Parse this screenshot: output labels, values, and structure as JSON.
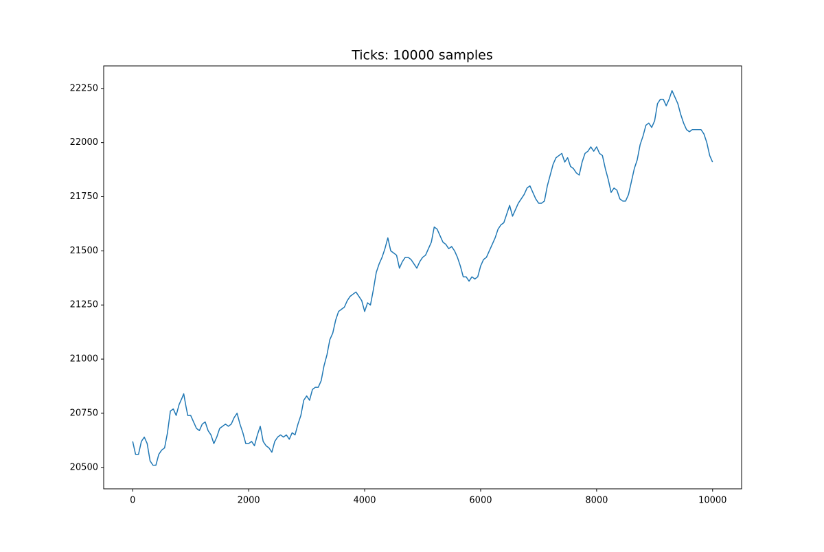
{
  "chart_data": {
    "type": "line",
    "title": "Ticks: 10000 samples",
    "x": [
      0,
      50,
      100,
      150,
      200,
      250,
      300,
      350,
      400,
      450,
      500,
      550,
      600,
      650,
      700,
      750,
      800,
      850,
      880,
      920,
      950,
      1000,
      1050,
      1100,
      1150,
      1200,
      1250,
      1300,
      1350,
      1400,
      1450,
      1500,
      1550,
      1600,
      1650,
      1700,
      1750,
      1800,
      1850,
      1900,
      1950,
      2000,
      2050,
      2100,
      2150,
      2200,
      2250,
      2300,
      2350,
      2400,
      2450,
      2500,
      2550,
      2600,
      2650,
      2700,
      2750,
      2800,
      2850,
      2900,
      2950,
      3000,
      3050,
      3100,
      3150,
      3200,
      3250,
      3300,
      3350,
      3400,
      3450,
      3500,
      3550,
      3600,
      3650,
      3700,
      3750,
      3800,
      3850,
      3900,
      3950,
      4000,
      4050,
      4100,
      4150,
      4200,
      4250,
      4300,
      4350,
      4400,
      4450,
      4500,
      4550,
      4600,
      4650,
      4700,
      4750,
      4800,
      4850,
      4900,
      4950,
      5000,
      5050,
      5100,
      5150,
      5200,
      5250,
      5300,
      5350,
      5400,
      5450,
      5500,
      5550,
      5600,
      5650,
      5700,
      5750,
      5800,
      5850,
      5900,
      5950,
      6000,
      6050,
      6100,
      6150,
      6200,
      6250,
      6300,
      6350,
      6400,
      6450,
      6500,
      6550,
      6600,
      6650,
      6700,
      6750,
      6800,
      6850,
      6900,
      6950,
      7000,
      7050,
      7100,
      7150,
      7200,
      7250,
      7300,
      7350,
      7400,
      7450,
      7500,
      7550,
      7600,
      7650,
      7700,
      7750,
      7800,
      7850,
      7900,
      7950,
      8000,
      8050,
      8100,
      8150,
      8200,
      8250,
      8300,
      8350,
      8400,
      8450,
      8500,
      8550,
      8600,
      8650,
      8700,
      8750,
      8800,
      8850,
      8900,
      8950,
      9000,
      9050,
      9100,
      9150,
      9200,
      9250,
      9300,
      9350,
      9400,
      9450,
      9500,
      9550,
      9600,
      9650,
      9700,
      9750,
      9800,
      9850,
      9900,
      9950,
      9999
    ],
    "series": [
      {
        "color": "#1f77b4",
        "values": [
          20620,
          20560,
          20560,
          20620,
          20640,
          20610,
          20530,
          20510,
          20510,
          20560,
          20580,
          20590,
          20660,
          20760,
          20770,
          20740,
          20790,
          20820,
          20840,
          20780,
          20740,
          20740,
          20710,
          20680,
          20670,
          20700,
          20710,
          20670,
          20650,
          20610,
          20640,
          20680,
          20690,
          20700,
          20690,
          20700,
          20730,
          20750,
          20700,
          20660,
          20610,
          20610,
          20620,
          20600,
          20650,
          20690,
          20620,
          20600,
          20590,
          20570,
          20620,
          20640,
          20650,
          20640,
          20650,
          20630,
          20660,
          20650,
          20700,
          20740,
          20810,
          20830,
          20810,
          20860,
          20870,
          20870,
          20900,
          20970,
          21020,
          21090,
          21120,
          21180,
          21220,
          21230,
          21240,
          21270,
          21290,
          21300,
          21310,
          21290,
          21270,
          21220,
          21260,
          21250,
          21320,
          21400,
          21440,
          21470,
          21510,
          21560,
          21500,
          21490,
          21480,
          21420,
          21450,
          21470,
          21470,
          21460,
          21440,
          21420,
          21450,
          21470,
          21480,
          21510,
          21540,
          21610,
          21600,
          21570,
          21540,
          21530,
          21510,
          21520,
          21500,
          21470,
          21430,
          21380,
          21380,
          21360,
          21380,
          21370,
          21380,
          21430,
          21460,
          21470,
          21500,
          21530,
          21560,
          21600,
          21620,
          21630,
          21670,
          21710,
          21660,
          21690,
          21720,
          21740,
          21760,
          21790,
          21800,
          21770,
          21740,
          21720,
          21720,
          21730,
          21800,
          21850,
          21900,
          21930,
          21940,
          21950,
          21910,
          21930,
          21890,
          21880,
          21860,
          21850,
          21910,
          21950,
          21960,
          21980,
          21960,
          21980,
          21950,
          21940,
          21880,
          21830,
          21770,
          21790,
          21780,
          21740,
          21730,
          21730,
          21760,
          21820,
          21880,
          21920,
          21990,
          22030,
          22080,
          22090,
          22070,
          22100,
          22180,
          22200,
          22200,
          22170,
          22200,
          22240,
          22210,
          22180,
          22130,
          22090,
          22060,
          22050,
          22060,
          22060,
          22060,
          22060,
          22040,
          22000,
          21940,
          21910
        ]
      }
    ],
    "xlim": [
      -500,
      10500
    ],
    "ylim": [
      20401,
      22354
    ],
    "xticks": [
      0,
      2000,
      4000,
      6000,
      8000,
      10000
    ],
    "yticks": [
      20500,
      20750,
      21000,
      21250,
      21500,
      21750,
      22000,
      22250
    ]
  }
}
